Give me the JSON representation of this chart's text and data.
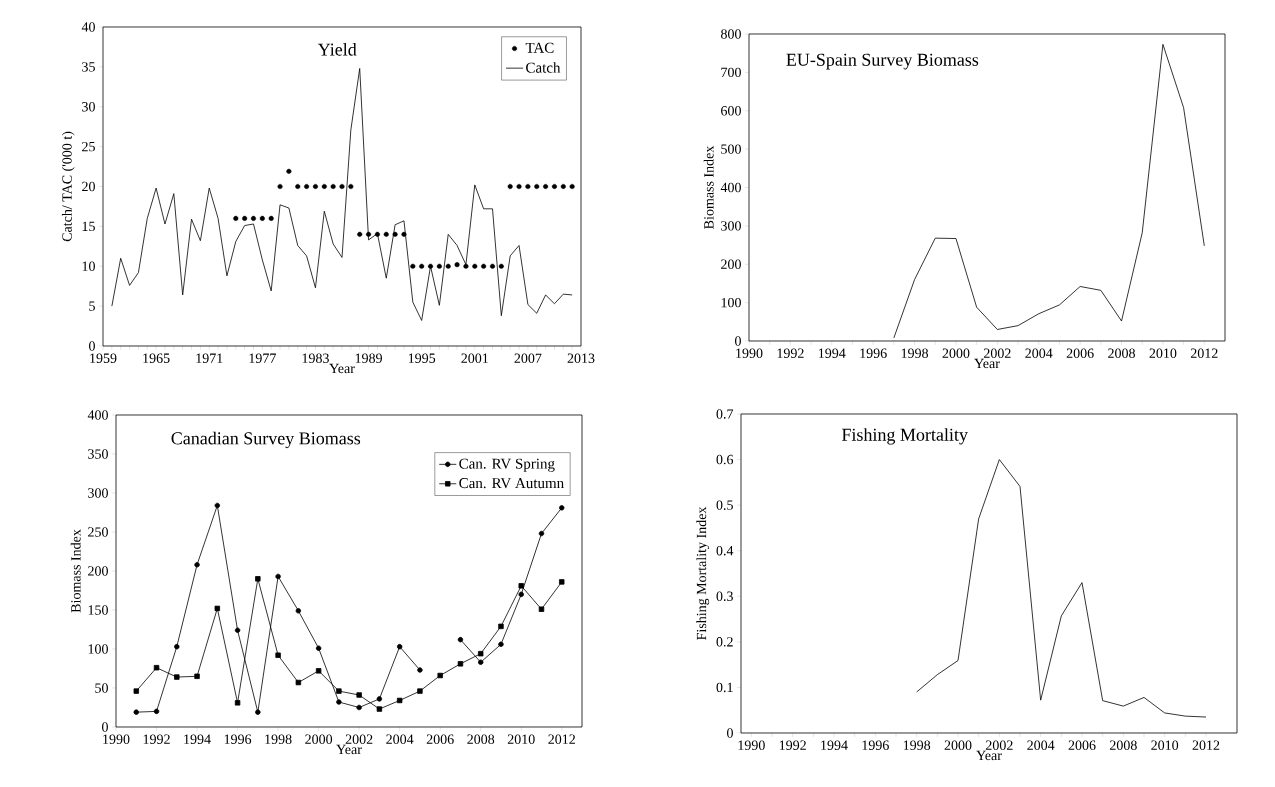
{
  "chart_data": [
    {
      "type": "line",
      "title": "Yield",
      "xlabel": "Year",
      "ylabel": "Catch/ TAC ('000 t)",
      "legend": "top right",
      "x": [
        1960,
        1961,
        1962,
        1963,
        1964,
        1965,
        1966,
        1967,
        1968,
        1969,
        1970,
        1971,
        1972,
        1973,
        1974,
        1975,
        1976,
        1977,
        1978,
        1979,
        1980,
        1981,
        1982,
        1983,
        1984,
        1985,
        1986,
        1987,
        1988,
        1989,
        1990,
        1991,
        1992,
        1993,
        1994,
        1995,
        1996,
        1997,
        1998,
        1999,
        2000,
        2001,
        2002,
        2003,
        2004,
        2005,
        2006,
        2007,
        2008,
        2009,
        2010,
        2011,
        2012
      ],
      "series": [
        {
          "name": "TAC",
          "type": "scatter",
          "marker": "circle",
          "color": "#000000",
          "values": [
            null,
            null,
            null,
            null,
            null,
            null,
            null,
            null,
            null,
            null,
            null,
            null,
            null,
            null,
            16,
            16,
            16,
            16,
            16,
            20,
            21.9,
            20,
            20,
            20,
            20,
            20,
            20,
            20,
            14,
            14,
            14,
            14,
            14,
            14,
            10,
            10,
            10,
            10,
            10,
            10.2,
            10,
            10,
            10,
            10,
            10,
            20,
            20,
            20,
            20,
            20,
            20,
            20,
            20
          ]
        },
        {
          "name": "Catch",
          "type": "line",
          "marker": "none",
          "line_style": "solid",
          "color": "#000000",
          "values": [
            5.0,
            11.0,
            7.6,
            9.2,
            16.0,
            19.8,
            15.3,
            19.1,
            6.4,
            15.9,
            13.2,
            19.8,
            16.0,
            8.8,
            13.1,
            15.1,
            15.3,
            10.8,
            6.9,
            17.7,
            17.3,
            12.6,
            11.3,
            7.3,
            16.9,
            12.8,
            11.1,
            27.1,
            34.8,
            13.3,
            14.1,
            8.5,
            15.2,
            15.7,
            5.5,
            3.2,
            10.0,
            5.1,
            14.0,
            12.6,
            10.2,
            20.2,
            17.2,
            17.2,
            3.8,
            11.3,
            12.6,
            5.2,
            4.1,
            6.4,
            5.3,
            6.5,
            6.4
          ]
        }
      ],
      "xlim": [
        1959,
        2013
      ],
      "xticks": [
        1959,
        {
          "value": 1960,
          "label": null
        },
        {
          "value": 1961,
          "label": null
        },
        {
          "value": 1962,
          "label": null
        },
        {
          "value": 1963,
          "label": null
        },
        {
          "value": 1964,
          "label": null
        },
        1965,
        {
          "value": 1966,
          "label": null
        },
        {
          "value": 1967,
          "label": null
        },
        {
          "value": 1968,
          "label": null
        },
        {
          "value": 1969,
          "label": null
        },
        {
          "value": 1970,
          "label": null
        },
        1971,
        {
          "value": 1972,
          "label": null
        },
        {
          "value": 1973,
          "label": null
        },
        {
          "value": 1974,
          "label": null
        },
        {
          "value": 1975,
          "label": null
        },
        {
          "value": 1976,
          "label": null
        },
        1977,
        {
          "value": 1978,
          "label": null
        },
        {
          "value": 1979,
          "label": null
        },
        {
          "value": 1980,
          "label": null
        },
        {
          "value": 1981,
          "label": null
        },
        {
          "value": 1982,
          "label": null
        },
        1983,
        {
          "value": 1984,
          "label": null
        },
        {
          "value": 1985,
          "label": null
        },
        {
          "value": 1986,
          "label": null
        },
        {
          "value": 1987,
          "label": null
        },
        {
          "value": 1988,
          "label": null
        },
        1989,
        {
          "value": 1990,
          "label": null
        },
        {
          "value": 1991,
          "label": null
        },
        {
          "value": 1992,
          "label": null
        },
        {
          "value": 1993,
          "label": null
        },
        {
          "value": 1994,
          "label": null
        },
        1995,
        {
          "value": 1996,
          "label": null
        },
        {
          "value": 1997,
          "label": null
        },
        {
          "value": 1998,
          "label": null
        },
        {
          "value": 1999,
          "label": null
        },
        {
          "value": 2000,
          "label": null
        },
        2001,
        {
          "value": 2002,
          "label": null
        },
        {
          "value": 2003,
          "label": null
        },
        {
          "value": 2004,
          "label": null
        },
        {
          "value": 2005,
          "label": null
        },
        {
          "value": 2006,
          "label": null
        },
        2007,
        {
          "value": 2008,
          "label": null
        },
        {
          "value": 2009,
          "label": null
        },
        {
          "value": 2010,
          "label": null
        },
        {
          "value": 2011,
          "label": null
        },
        {
          "value": 2012,
          "label": null
        },
        2013
      ],
      "ylim": [
        0,
        40
      ],
      "yticks": [
        0,
        5,
        10,
        15,
        20,
        25,
        30,
        35,
        40
      ]
    },
    {
      "type": "line",
      "title": "EU-Spain Survey Biomass",
      "xlabel": "Year",
      "ylabel": "Biomass Index",
      "marker": "none",
      "line_style": "solid",
      "x": [
        1997,
        1998,
        1999,
        2000,
        2001,
        2002,
        2003,
        2004,
        2005,
        2006,
        2007,
        2008,
        2009,
        2010,
        2011,
        2012
      ],
      "series": [
        {
          "color": "#000000",
          "values": [
            8,
            160,
            268,
            267,
            88,
            30,
            40,
            71,
            94,
            142,
            132,
            52,
            282,
            773,
            608,
            248
          ]
        }
      ],
      "xlim": [
        1990,
        2013
      ],
      "xticks": [
        1990,
        {
          "value": 1991,
          "label": null
        },
        1992,
        {
          "value": 1993,
          "label": null
        },
        1994,
        {
          "value": 1995,
          "label": null
        },
        1996,
        {
          "value": 1997,
          "label": null
        },
        1998,
        {
          "value": 1999,
          "label": null
        },
        2000,
        {
          "value": 2001,
          "label": null
        },
        2002,
        {
          "value": 2003,
          "label": null
        },
        2004,
        {
          "value": 2005,
          "label": null
        },
        2006,
        {
          "value": 2007,
          "label": null
        },
        2008,
        {
          "value": 2009,
          "label": null
        },
        2010,
        {
          "value": 2011,
          "label": null
        },
        2012
      ],
      "ylim": [
        0,
        800
      ],
      "yticks": [
        0,
        100,
        200,
        300,
        400,
        500,
        600,
        700,
        800
      ]
    },
    {
      "type": "line",
      "title": "Canadian Survey Biomass",
      "xlabel": "Year",
      "ylabel": "Biomass Index",
      "legend": "top right",
      "line_style": "solid",
      "x": [
        1991,
        1992,
        1993,
        1994,
        1995,
        1996,
        1997,
        1998,
        1999,
        2000,
        2001,
        2002,
        2003,
        2004,
        2005,
        2006,
        2007,
        2008,
        2009,
        2010,
        2011,
        2012
      ],
      "series": [
        {
          "name": "Can. RV Spring",
          "marker": "circle",
          "color": "#000000",
          "values": [
            19,
            20,
            103,
            208,
            284,
            124,
            19,
            193,
            149,
            101,
            32,
            25,
            36,
            103,
            73,
            null,
            112,
            83,
            106,
            170,
            248,
            281
          ]
        },
        {
          "name": "Can. RV Autumn",
          "marker": "square",
          "color": "#000000",
          "values": [
            46,
            76,
            64,
            65,
            152,
            31,
            190,
            92,
            57,
            72,
            46,
            41,
            23,
            34,
            46,
            66,
            81,
            94,
            129,
            181,
            151,
            186
          ]
        }
      ],
      "xlim": [
        1990,
        2013
      ],
      "xticks": [
        1990,
        1992,
        1994,
        1996,
        1998,
        2000,
        2002,
        2004,
        2006,
        2008,
        2010,
        2012
      ],
      "ylim": [
        0,
        400
      ],
      "yticks": [
        0,
        50,
        100,
        150,
        200,
        250,
        300,
        350,
        400
      ]
    },
    {
      "type": "line",
      "title": "Fishing Mortality",
      "xlabel": "Year",
      "ylabel": "Fishing Mortality Index",
      "marker": "none",
      "line_style": "solid",
      "x": [
        1998,
        1999,
        2000,
        2001,
        2002,
        2003,
        2004,
        2005,
        2006,
        2007,
        2008,
        2009,
        2010,
        2011,
        2012
      ],
      "series": [
        {
          "color": "#000000",
          "values": [
            0.09,
            0.128,
            0.159,
            0.47,
            0.6,
            0.541,
            0.072,
            0.257,
            0.33,
            0.071,
            0.059,
            0.078,
            0.044,
            0.037,
            0.035
          ]
        }
      ],
      "xlim": [
        1989.5,
        2013.5
      ],
      "xticks": [
        1990,
        {
          "value": 1991,
          "label": null
        },
        1992,
        {
          "value": 1993,
          "label": null
        },
        1994,
        {
          "value": 1995,
          "label": null
        },
        1996,
        {
          "value": 1997,
          "label": null
        },
        1998,
        {
          "value": 1999,
          "label": null
        },
        2000,
        {
          "value": 2001,
          "label": null
        },
        2002,
        {
          "value": 2003,
          "label": null
        },
        2004,
        {
          "value": 2005,
          "label": null
        },
        2006,
        {
          "value": 2007,
          "label": null
        },
        2008,
        {
          "value": 2009,
          "label": null
        },
        2010,
        {
          "value": 2011,
          "label": null
        },
        2012
      ],
      "ylim": [
        0,
        0.7
      ],
      "yticks": [
        0,
        0.1,
        0.2,
        0.3,
        0.4,
        0.5,
        0.6,
        0.7
      ]
    }
  ]
}
